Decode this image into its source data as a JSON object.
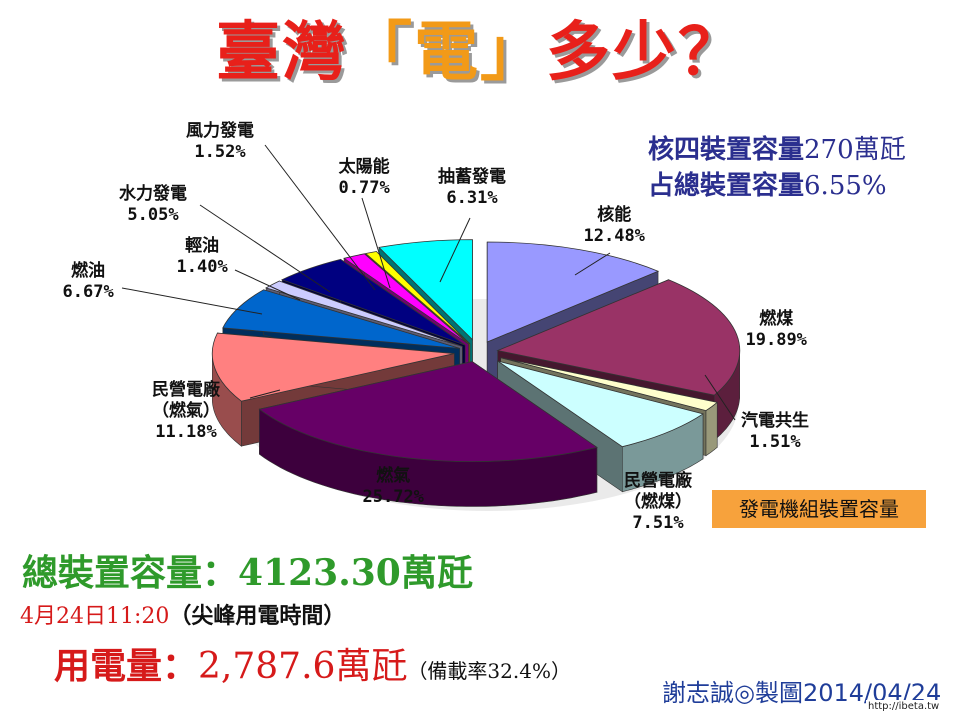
{
  "title": {
    "part1": "臺灣",
    "part2": "「電」",
    "part3": "多少？"
  },
  "info": {
    "line1_text": "核四裝置容量",
    "line1_value": "270萬瓩",
    "line2_text": "占總裝置容量",
    "line2_value": "6.55%"
  },
  "legend_box": "發電機組裝置容量",
  "summary": {
    "total_label": "總裝置容量：",
    "total_value": "4123.30萬瓩",
    "date": "4月24日11:20",
    "peak_note": "（尖峰用電時間）",
    "usage_label": "用電量：",
    "usage_value": "2,787.6萬瓩",
    "reserve_note": "（備載率32.4%）"
  },
  "credit": "謝志誠◎製圖2014/04/24",
  "watermark": "http://ibeta.tw",
  "colors": {
    "nuclear": "#9999ff",
    "coal": "#993366",
    "cogen": "#ffffcc",
    "ipp_coal": "#ccffff",
    "gas": "#660066",
    "ipp_gas": "#ff8080",
    "fuel_oil": "#0066cc",
    "diesel": "#ccccff",
    "hydro": "#000080",
    "wind": "#ff00ff",
    "solar": "#ffff00",
    "pumped": "#00ffff"
  },
  "chart_data": {
    "type": "pie",
    "title": "",
    "unit": "%",
    "series": [
      {
        "name": "核能",
        "value": 12.48,
        "label": "12.48%",
        "color": "#9999ff"
      },
      {
        "name": "燃煤",
        "value": 19.89,
        "label": "19.89%",
        "color": "#993366"
      },
      {
        "name": "汽電共生",
        "value": 1.51,
        "label": "1.51%",
        "color": "#ffffcc"
      },
      {
        "name": "民營電廠（燃煤）",
        "value": 7.51,
        "label": "7.51%",
        "color": "#ccffff"
      },
      {
        "name": "燃氣",
        "value": 25.72,
        "label": "25.72%",
        "color": "#660066"
      },
      {
        "name": "民營電廠（燃氣）",
        "value": 11.18,
        "label": "11.18%",
        "color": "#ff8080"
      },
      {
        "name": "燃油",
        "value": 6.67,
        "label": "6.67%",
        "color": "#0066cc"
      },
      {
        "name": "輕油",
        "value": 1.4,
        "label": "1.40%",
        "color": "#ccccff"
      },
      {
        "name": "水力發電",
        "value": 5.05,
        "label": "5.05%",
        "color": "#000080"
      },
      {
        "name": "風力發電",
        "value": 1.52,
        "label": "1.52%",
        "color": "#ff00ff"
      },
      {
        "name": "太陽能",
        "value": 0.77,
        "label": "0.77%",
        "color": "#ffff00"
      },
      {
        "name": "抽蓄發電",
        "value": 6.31,
        "label": "6.31%",
        "color": "#00ffff"
      }
    ],
    "labels_display": [
      [
        "核能",
        "12.48%"
      ],
      [
        "燃煤",
        "19.89%"
      ],
      [
        "汽電共生",
        "1.51%"
      ],
      [
        "民營電廠",
        "（燃煤）",
        "7.51%"
      ],
      [
        "燃氣",
        "25.72%"
      ],
      [
        "民營電廠",
        "（燃氣）",
        "11.18%"
      ],
      [
        "燃油",
        "6.67%"
      ],
      [
        "輕油",
        "1.40%"
      ],
      [
        "水力發電",
        "5.05%"
      ],
      [
        "風力發電",
        "1.52%"
      ],
      [
        "太陽能",
        "0.77%"
      ],
      [
        "抽蓄發電",
        "6.31%"
      ]
    ]
  }
}
